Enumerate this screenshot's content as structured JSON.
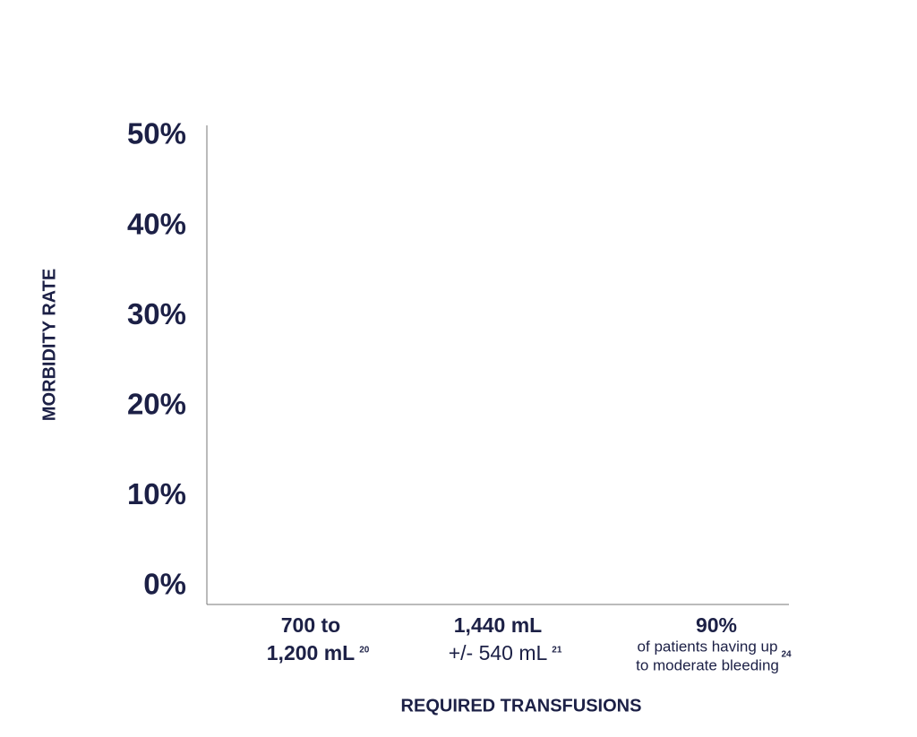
{
  "chart_data": {
    "type": "bar",
    "y_label": "MORBIDITY RATE",
    "x_label": "REQUIRED TRANSFUSIONS",
    "categories": [
      {
        "lines": [
          "700 to",
          "1,200 mL"
        ],
        "note": "20"
      },
      {
        "lines": [
          "1,440 mL",
          "+/- 540 mL"
        ],
        "note": "21"
      },
      {
        "lines": [
          "90%"
        ],
        "detail": [
          "of patients having up",
          "to moderate bleeding"
        ],
        "note": "24"
      }
    ],
    "ylim": [
      0,
      50
    ],
    "yticks": [
      {
        "value": 0,
        "label": "0%"
      },
      {
        "value": 10,
        "label": "10%"
      },
      {
        "value": 20,
        "label": "20%"
      },
      {
        "value": 30,
        "label": "30%"
      },
      {
        "value": 40,
        "label": "40%"
      },
      {
        "value": 50,
        "label": "50%"
      }
    ],
    "grid": false,
    "color": "#1c2046"
  }
}
